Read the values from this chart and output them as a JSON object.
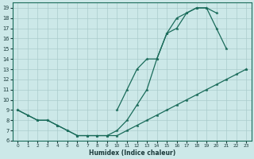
{
  "xlabel": "Humidex (Indice chaleur)",
  "bg_color": "#cce8e8",
  "grid_color": "#aacccc",
  "line_color": "#1a6b5a",
  "xlim": [
    -0.5,
    23.5
  ],
  "ylim": [
    6,
    19.5
  ],
  "xticks": [
    0,
    1,
    2,
    3,
    4,
    5,
    6,
    7,
    8,
    9,
    10,
    11,
    12,
    13,
    14,
    15,
    16,
    17,
    18,
    19,
    20,
    21,
    22,
    23
  ],
  "yticks": [
    6,
    7,
    8,
    9,
    10,
    11,
    12,
    13,
    14,
    15,
    16,
    17,
    18,
    19
  ],
  "line1_x": [
    0,
    1,
    2,
    3,
    4,
    5,
    6,
    7,
    8,
    9,
    10,
    11,
    12,
    13,
    14,
    15,
    16,
    17,
    18,
    19,
    20,
    21,
    22,
    23
  ],
  "line1_y": [
    9,
    8.5,
    8,
    8,
    7.5,
    7,
    6.5,
    6.5,
    6.5,
    6.5,
    7,
    8,
    9.5,
    11,
    14,
    16.5,
    18,
    18.5,
    19,
    19,
    18.5,
    null,
    null,
    null
  ],
  "line2_x": [
    0,
    1,
    2,
    3,
    4,
    5,
    6,
    7,
    8,
    9,
    10,
    11,
    12,
    13,
    14,
    15,
    16,
    17,
    18,
    19,
    20,
    21,
    22,
    23
  ],
  "line2_y": [
    null,
    null,
    null,
    null,
    null,
    null,
    null,
    null,
    null,
    null,
    9,
    11,
    13,
    14,
    14,
    16.5,
    17,
    18.5,
    19,
    19,
    17,
    15,
    null,
    13
  ],
  "line3_x": [
    0,
    1,
    2,
    3,
    4,
    5,
    6,
    7,
    8,
    9,
    10,
    11,
    12,
    13,
    14,
    15,
    16,
    17,
    18,
    19,
    20,
    21,
    22,
    23
  ],
  "line3_y": [
    9,
    8.5,
    8,
    8,
    7.5,
    7,
    6.5,
    6.5,
    6.5,
    6.5,
    6.5,
    7,
    7.5,
    8,
    8.5,
    9,
    9.5,
    10,
    10.5,
    11,
    11.5,
    12,
    12.5,
    13
  ],
  "marker_size": 2.5,
  "linewidth": 0.9
}
